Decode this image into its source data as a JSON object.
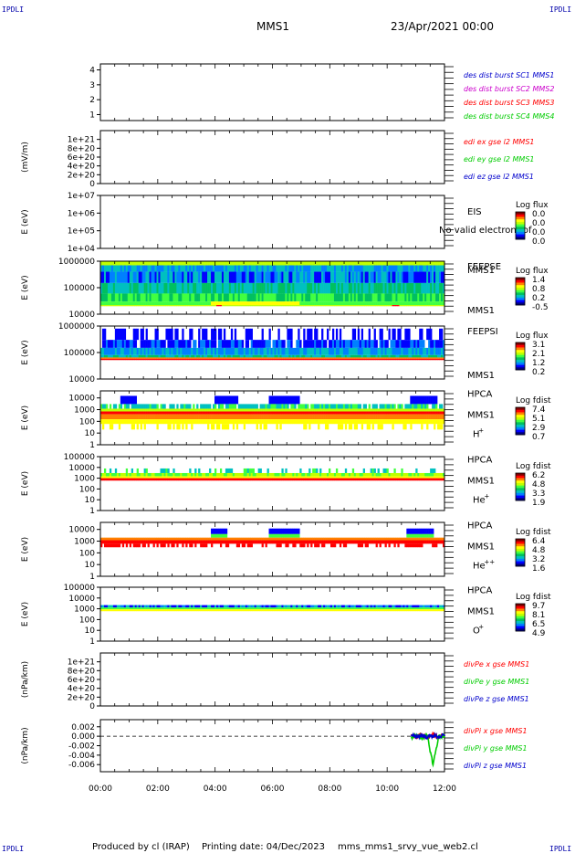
{
  "header": {
    "left_logo": "IPDLI",
    "right_logo": "IPDLI",
    "title": "MMS1",
    "datetime": "23/Apr/2021 00:00",
    "bottom_left_logo": "IPDLI",
    "bottom_right_logo": "IPDLI"
  },
  "footer": {
    "produced": "Produced by cl (IRAP)",
    "printing_date": "Printing date: 04/Dec/2023",
    "script": "mms_mms1_srvy_vue_web2.cl"
  },
  "colors": {
    "palette": [
      "#000080",
      "#0000ff",
      "#0080ff",
      "#00c0c0",
      "#00c060",
      "#40ff40",
      "#c0ff00",
      "#ffff00",
      "#ff8000",
      "#ff0000",
      "#800000"
    ],
    "series_blue": "#0000cc",
    "series_green": "#00cc00",
    "series_red": "#ff0000",
    "series_magenta": "#cc00cc"
  },
  "chart_data": [
    {
      "type": "line",
      "panel": "sc_status",
      "ylabel": "",
      "yticks": [
        "1",
        "2",
        "3",
        "4"
      ],
      "ylim": [
        0.6,
        4.4
      ],
      "legend": [
        {
          "name": "des dist burst SC1 MMS1",
          "color": "#0000cc"
        },
        {
          "name": "des dist burst SC2 MMS2",
          "color": "#cc00cc"
        },
        {
          "name": "des dist burst SC3 MMS3",
          "color": "#ff0000"
        },
        {
          "name": "des dist burst SC4 MMS4",
          "color": "#00cc00"
        }
      ],
      "series": []
    },
    {
      "type": "line",
      "panel": "edi_efield",
      "ylabel": "(mV/m)",
      "yticks": [
        "0",
        "2e+20",
        "4e+20",
        "6e+20",
        "8e+20",
        "1e+21"
      ],
      "ylim": [
        0,
        1.2e+21
      ],
      "zero_line": true,
      "legend": [
        {
          "name": "edi ex gse l2 MMS1",
          "color": "#ff0000"
        },
        {
          "name": "edi ey gse l2 MMS1",
          "color": "#00cc00"
        },
        {
          "name": "edi ez gse l2 MMS1",
          "color": "#0000cc"
        }
      ],
      "series": []
    },
    {
      "type": "heatmap",
      "panel": "eis",
      "ylabel": "E (eV)",
      "yticks": [
        "1e+04",
        "1e+05",
        "1e+06",
        "1e+07"
      ],
      "ylim": [
        10000,
        10000000
      ],
      "log": true,
      "instrument": [
        "EIS",
        "MMS1"
      ],
      "overlay_text": "No valid electron tof",
      "cbar_title": "Log flux",
      "cbar_ticks": [
        "0.0",
        "0.0",
        "0.0",
        "0.0"
      ],
      "data_present": false
    },
    {
      "type": "heatmap",
      "panel": "feepse",
      "ylabel": "E (eV)",
      "yticks": [
        "10000",
        "100000",
        "1000000"
      ],
      "ylim": [
        10000,
        1000000
      ],
      "log": true,
      "instrument": [
        "FEEPSE",
        "MMS1"
      ],
      "cbar_title": "Log flux",
      "cbar_ticks": [
        "1.4",
        "0.8",
        "0.2",
        "-0.5"
      ],
      "data_present": true
    },
    {
      "type": "heatmap",
      "panel": "feepsi",
      "ylabel": "E (eV)",
      "yticks": [
        "10000",
        "100000",
        "1000000"
      ],
      "ylim": [
        10000,
        1000000
      ],
      "log": true,
      "instrument": [
        "FEEPSI",
        "MMS1"
      ],
      "cbar_title": "Log flux",
      "cbar_ticks": [
        "3.1",
        "2.1",
        "1.2",
        "0.2"
      ],
      "data_present": true
    },
    {
      "type": "heatmap",
      "panel": "hpca_h",
      "ylabel": "E (eV)",
      "yticks": [
        "1",
        "10",
        "100",
        "1000",
        "10000"
      ],
      "ylim": [
        1,
        40000
      ],
      "log": true,
      "instrument": [
        "HPCA",
        "MMS1"
      ],
      "species_base": "H",
      "species_sup": "+",
      "cbar_title": "Log fdist",
      "cbar_ticks": [
        "7.4",
        "5.1",
        "2.9",
        "0.7"
      ],
      "data_present": true
    },
    {
      "type": "heatmap",
      "panel": "hpca_he",
      "ylabel": "E (eV)",
      "yticks": [
        "1",
        "10",
        "100",
        "1000",
        "10000",
        "100000"
      ],
      "ylim": [
        1,
        100000
      ],
      "log": true,
      "instrument": [
        "HPCA",
        "MMS1"
      ],
      "species_base": "He",
      "species_sup": "+",
      "cbar_title": "Log fdist",
      "cbar_ticks": [
        "6.2",
        "4.8",
        "3.3",
        "1.9"
      ],
      "data_present": true
    },
    {
      "type": "heatmap",
      "panel": "hpca_hepp",
      "ylabel": "E (eV)",
      "yticks": [
        "1",
        "10",
        "100",
        "1000",
        "10000"
      ],
      "ylim": [
        1,
        40000
      ],
      "log": true,
      "instrument": [
        "HPCA",
        "MMS1"
      ],
      "species_base": "He",
      "species_sup": "++",
      "cbar_title": "Log fdist",
      "cbar_ticks": [
        "6.4",
        "4.8",
        "3.2",
        "1.6"
      ],
      "data_present": true
    },
    {
      "type": "heatmap",
      "panel": "hpca_o",
      "ylabel": "E (eV)",
      "yticks": [
        "1",
        "10",
        "100",
        "1000",
        "10000",
        "100000"
      ],
      "ylim": [
        1,
        100000
      ],
      "log": true,
      "instrument": [
        "HPCA",
        "MMS1"
      ],
      "species_base": "O",
      "species_sup": "+",
      "cbar_title": "Log fdist",
      "cbar_ticks": [
        "9.7",
        "8.1",
        "6.5",
        "4.9"
      ],
      "data_present": true
    },
    {
      "type": "line",
      "panel": "divpe",
      "ylabel": "(nPa/km)",
      "yticks": [
        "0",
        "2e+20",
        "4e+20",
        "6e+20",
        "8e+20",
        "1e+21"
      ],
      "ylim": [
        0,
        1.2e+21
      ],
      "zero_line": true,
      "legend": [
        {
          "name": "divPe x gse MMS1",
          "color": "#ff0000"
        },
        {
          "name": "divPe y gse MMS1",
          "color": "#00cc00"
        },
        {
          "name": "divPe z gse MMS1",
          "color": "#0000cc"
        }
      ],
      "series": []
    },
    {
      "type": "line",
      "panel": "divpi",
      "ylabel": "(nPa/km)",
      "yticks": [
        "-0.006",
        "-0.004",
        "-0.002",
        "0.000",
        "0.002"
      ],
      "ylim": [
        -0.0075,
        0.0035
      ],
      "zero_line": true,
      "legend": [
        {
          "name": "divPi x gse MMS1",
          "color": "#ff0000"
        },
        {
          "name": "divPi y gse MMS1",
          "color": "#00cc00"
        },
        {
          "name": "divPi z gse MMS1",
          "color": "#0000cc"
        }
      ],
      "series": [
        {
          "name": "divPi x gse MMS1",
          "color": "#ff0000",
          "x": [
            10.85,
            11.0,
            11.2,
            11.4,
            11.6,
            11.8,
            12.0
          ],
          "y": [
            0.0003,
            -0.0004,
            0.0005,
            -0.0003,
            0.0004,
            -0.0002,
            0.0001
          ]
        },
        {
          "name": "divPi y gse MMS1",
          "color": "#00cc00",
          "x": [
            10.85,
            11.0,
            11.2,
            11.4,
            11.6,
            11.8,
            12.0
          ],
          "y": [
            -0.0002,
            0.0002,
            -0.0003,
            0.0001,
            -0.006,
            0.0001,
            -0.0001
          ]
        },
        {
          "name": "divPi z gse MMS1",
          "color": "#0000cc",
          "x": [
            10.85,
            11.0,
            11.2,
            11.4,
            11.6,
            11.8,
            12.0
          ],
          "y": [
            0.0001,
            -0.0001,
            0.0002,
            -0.0002,
            0.0001,
            -0.0001,
            0.0002
          ]
        }
      ]
    }
  ],
  "time_axis": {
    "ticks": [
      "00:00",
      "02:00",
      "04:00",
      "06:00",
      "08:00",
      "10:00",
      "12:00"
    ],
    "range_hours": [
      0,
      12
    ]
  }
}
